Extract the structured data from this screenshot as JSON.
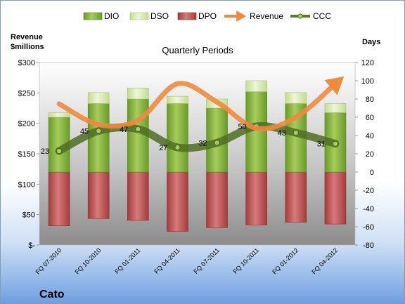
{
  "chart_data": {
    "type": "bar",
    "title": "Quarterly Periods",
    "company": "Cato",
    "left_axis_title": [
      "Revenue",
      "$millions"
    ],
    "right_axis_title": "Days",
    "left_axis": {
      "min": 0,
      "max": 300,
      "step": 50,
      "tick_labels": [
        "$-",
        "$50",
        "$100",
        "$150",
        "$200",
        "$250",
        "$300"
      ]
    },
    "right_axis": {
      "min": -80,
      "max": 120,
      "step": 20,
      "tick_labels": [
        "-80",
        "-60",
        "-40",
        "-20",
        "0",
        "20",
        "40",
        "60",
        "80",
        "100",
        "120"
      ]
    },
    "categories": [
      "FQ 07-2010",
      "FQ 10-2010",
      "FQ 01-2011",
      "FQ 04-2011",
      "FQ 07-2011",
      "FQ 10-2011",
      "FQ 01-2012",
      "FQ 04-2012"
    ],
    "legend": [
      "DIO",
      "DSO",
      "DPO",
      "Revenue",
      "CCC"
    ],
    "legend_position": "top",
    "grid": false,
    "colors": {
      "DIO": "#7fa83a",
      "DSO": "#d3e6a8",
      "DPO": "#b84a4a",
      "Revenue": "#f08a3c",
      "CCC": "#5a7d2a"
    },
    "series": [
      {
        "name": "DIO",
        "axis": "right",
        "values": [
          60,
          75,
          80,
          75,
          70,
          88,
          75,
          65
        ]
      },
      {
        "name": "DSO",
        "axis": "right",
        "values": [
          5,
          12,
          12,
          8,
          10,
          12,
          12,
          10
        ]
      },
      {
        "name": "DPO",
        "axis": "right",
        "values": [
          -59,
          -51,
          -53,
          -65,
          -61,
          -58,
          -55,
          -57
        ]
      },
      {
        "name": "Revenue",
        "axis": "left",
        "values": [
          232,
          198,
          205,
          265,
          235,
          192,
          210,
          265
        ]
      },
      {
        "name": "CCC",
        "axis": "right",
        "values": [
          23,
          45,
          47,
          27,
          32,
          50,
          43,
          31
        ],
        "data_labels": [
          "23",
          "45",
          "47",
          "27",
          "32",
          "50",
          "43",
          "31"
        ]
      }
    ]
  }
}
